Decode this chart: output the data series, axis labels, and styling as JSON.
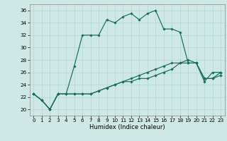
{
  "xlabel": "Humidex (Indice chaleur)",
  "background_color": "#cde8e5",
  "grid_color": "#aad4d0",
  "line_color": "#1a6b60",
  "xlim": [
    -0.5,
    23.5
  ],
  "ylim": [
    19.0,
    37.0
  ],
  "yticks": [
    20,
    22,
    24,
    26,
    28,
    30,
    32,
    34,
    36
  ],
  "xticks": [
    0,
    1,
    2,
    3,
    4,
    5,
    6,
    7,
    8,
    9,
    10,
    11,
    12,
    13,
    14,
    15,
    16,
    17,
    18,
    19,
    20,
    21,
    22,
    23
  ],
  "line1": [
    22.5,
    21.5,
    20.0,
    22.5,
    22.5,
    27.0,
    32.0,
    32.0,
    32.0,
    34.5,
    34.0,
    35.0,
    35.5,
    34.5,
    35.5,
    36.0,
    33.0,
    33.0,
    32.5,
    27.5,
    27.5,
    24.5,
    26.0,
    26.0
  ],
  "line2": [
    22.5,
    21.5,
    20.0,
    22.5,
    22.5,
    22.5,
    22.5,
    22.5,
    23.0,
    23.5,
    24.0,
    24.5,
    25.0,
    25.5,
    26.0,
    26.5,
    27.0,
    27.5,
    27.5,
    28.0,
    27.5,
    25.0,
    25.0,
    26.0
  ],
  "line3": [
    22.5,
    21.5,
    20.0,
    22.5,
    22.5,
    22.5,
    22.5,
    22.5,
    23.0,
    23.5,
    24.0,
    24.5,
    24.5,
    25.0,
    25.0,
    25.5,
    26.0,
    26.5,
    27.5,
    27.5,
    27.5,
    25.0,
    25.0,
    25.5
  ],
  "xlabel_fontsize": 6.0,
  "tick_fontsize": 5.2,
  "linewidth": 0.85,
  "markersize": 1.8
}
